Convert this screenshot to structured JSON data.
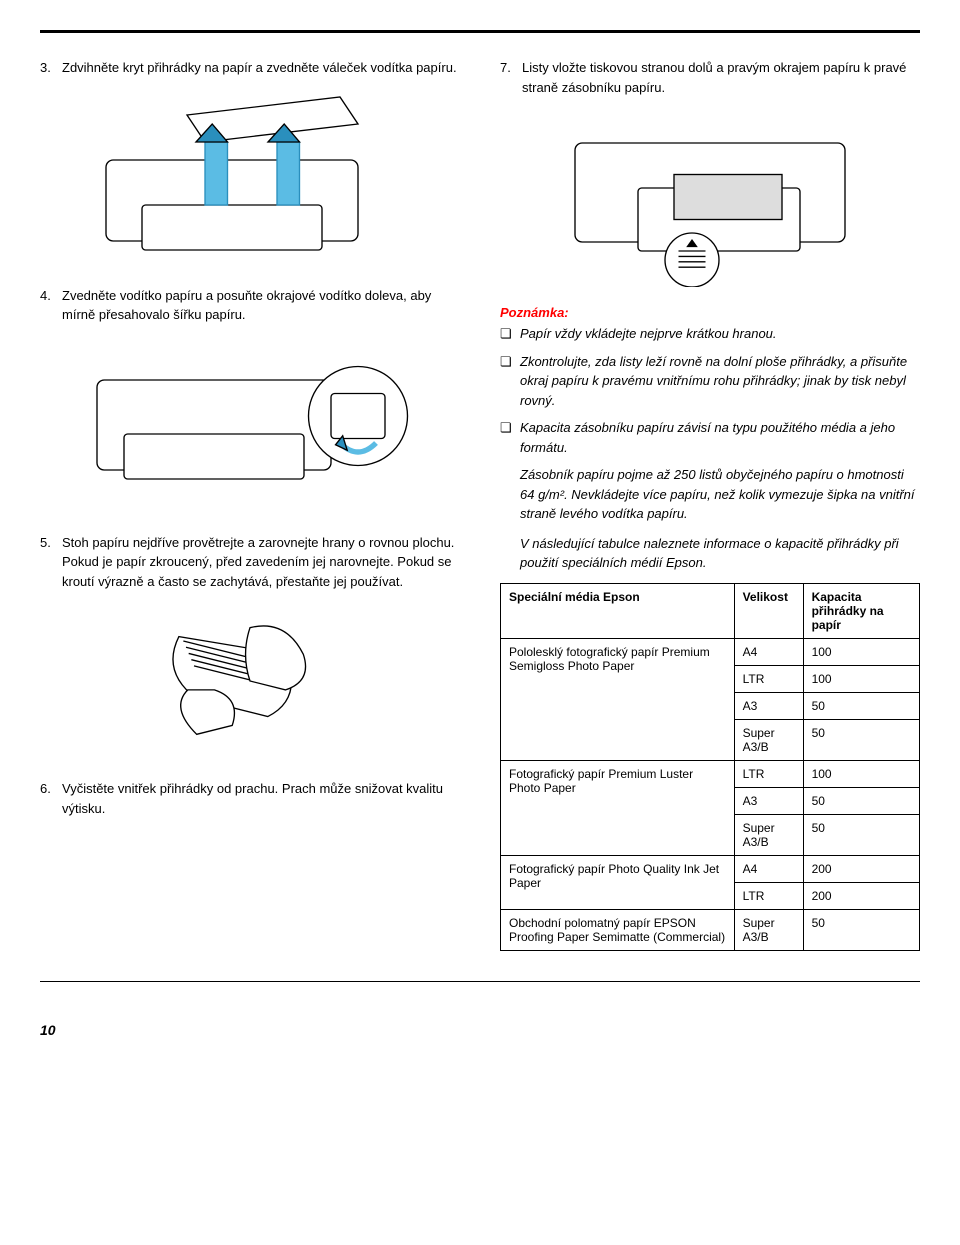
{
  "steps": {
    "s3": {
      "num": "3.",
      "text": "Zdvihněte kryt přihrádky na papír a zvedněte váleček vodítka papíru."
    },
    "s4": {
      "num": "4.",
      "text": "Zvedněte vodítko papíru a posuňte okrajové vodítko doleva, aby mírně přesahovalo šířku papíru."
    },
    "s5": {
      "num": "5.",
      "text": "Stoh papíru nejdříve provětrejte a zarovnejte hrany o rovnou plochu.\nPokud je papír zkroucený, před zavedením jej narovnejte. Pokud se kroutí výrazně a často se zachytává, přestaňte jej používat."
    },
    "s6": {
      "num": "6.",
      "text": "Vyčistěte vnitřek přihrádky od prachu. Prach může snižovat kvalitu výtisku."
    },
    "s7": {
      "num": "7.",
      "text": "Listy vložte tiskovou stranou dolů a pravým okrajem papíru k pravé straně zásobníku papíru."
    }
  },
  "note": {
    "title": "Poznámka:",
    "items": [
      "Papír vždy vkládejte nejprve krátkou hranou.",
      "Zkontrolujte, zda listy leží rovně na dolní ploše přihrádky, a přisuňte okraj papíru k pravému vnitřnímu rohu přihrádky; jinak by tisk nebyl rovný.",
      "Kapacita zásobníku papíru závisí na typu použitého média a jeho formátu."
    ],
    "para1": "Zásobník papíru pojme až 250 listů obyčejného papíru o hmotnosti 64 g/m². Nevkládejte více papíru, než kolik vymezuje šipka na vnitřní straně levého vodítka papíru.",
    "para2": "V následující tabulce naleznete informace o kapacitě přihrádky při použití speciálních médií Epson."
  },
  "table": {
    "headers": [
      "Speciální média Epson",
      "Velikost",
      "Kapacita přihrádky na papír"
    ],
    "groups": [
      {
        "media": "Pololesklý fotografický papír Premium Semigloss Photo Paper",
        "rows": [
          [
            "A4",
            "100"
          ],
          [
            "LTR",
            "100"
          ],
          [
            "A3",
            "50"
          ],
          [
            "Super A3/B",
            "50"
          ]
        ]
      },
      {
        "media": "Fotografický papír Premium Luster Photo Paper",
        "rows": [
          [
            "LTR",
            "100"
          ],
          [
            "A3",
            "50"
          ],
          [
            "Super A3/B",
            "50"
          ]
        ]
      },
      {
        "media": "Fotografický papír Photo Quality Ink Jet Paper",
        "rows": [
          [
            "A4",
            "200"
          ],
          [
            "LTR",
            "200"
          ]
        ]
      },
      {
        "media": "Obchodní polomatný papír EPSON Proofing Paper Semimatte (Commercial)",
        "rows": [
          [
            "Super A3/B",
            "50"
          ]
        ]
      }
    ]
  },
  "pageNumber": "10",
  "bulletGlyph": "❏"
}
